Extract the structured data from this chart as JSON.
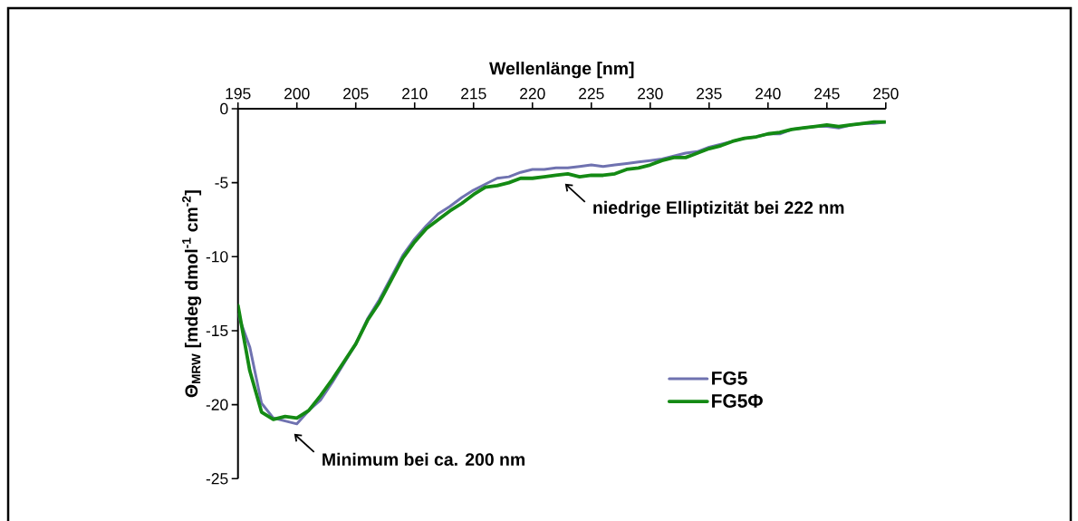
{
  "chart_data": {
    "type": "line",
    "xlabel": "Wellenlänge [nm]",
    "ylabel": "Θ$_{MRW}$ [mdeg dmol$^{-1}$ cm$^{-2}$]",
    "x": [
      195,
      196,
      197,
      198,
      199,
      200,
      201,
      202,
      203,
      204,
      205,
      206,
      207,
      208,
      209,
      210,
      211,
      212,
      213,
      214,
      215,
      216,
      217,
      218,
      219,
      220,
      221,
      222,
      223,
      224,
      225,
      226,
      227,
      228,
      229,
      230,
      231,
      232,
      233,
      234,
      235,
      236,
      237,
      238,
      239,
      240,
      241,
      242,
      243,
      244,
      245,
      246,
      247,
      248,
      249,
      250
    ],
    "series": [
      {
        "name": "FG5",
        "color": "#6f72b0",
        "values": [
          -13.9,
          -16.1,
          -19.9,
          -20.9,
          -21.1,
          -21.3,
          -20.4,
          -19.7,
          -18.5,
          -17.2,
          -15.9,
          -14.2,
          -12.9,
          -11.4,
          -9.9,
          -8.8,
          -7.9,
          -7.1,
          -6.6,
          -6.0,
          -5.5,
          -5.1,
          -4.7,
          -4.6,
          -4.3,
          -4.1,
          -4.1,
          -4.0,
          -4.0,
          -3.9,
          -3.8,
          -3.9,
          -3.8,
          -3.7,
          -3.6,
          -3.5,
          -3.4,
          -3.2,
          -3.0,
          -2.9,
          -2.6,
          -2.4,
          -2.2,
          -2.0,
          -1.9,
          -1.7,
          -1.7,
          -1.4,
          -1.3,
          -1.2,
          -1.2,
          -1.3,
          -1.1,
          -1.0,
          -1.0,
          -0.9
        ]
      },
      {
        "name": "FG5Φ",
        "color": "#148a14",
        "values": [
          -13.3,
          -17.7,
          -20.5,
          -21.0,
          -20.8,
          -20.9,
          -20.4,
          -19.4,
          -18.3,
          -17.1,
          -15.9,
          -14.3,
          -13.1,
          -11.6,
          -10.1,
          -9.0,
          -8.1,
          -7.5,
          -6.9,
          -6.4,
          -5.8,
          -5.3,
          -5.2,
          -5.0,
          -4.7,
          -4.7,
          -4.6,
          -4.5,
          -4.4,
          -4.6,
          -4.5,
          -4.5,
          -4.4,
          -4.1,
          -4.0,
          -3.8,
          -3.5,
          -3.3,
          -3.3,
          -3.0,
          -2.7,
          -2.5,
          -2.2,
          -2.0,
          -1.9,
          -1.7,
          -1.6,
          -1.4,
          -1.3,
          -1.2,
          -1.1,
          -1.2,
          -1.1,
          -1.0,
          -0.9,
          -0.9
        ]
      }
    ],
    "xlim": [
      195,
      250
    ],
    "xticks": [
      195,
      200,
      205,
      210,
      215,
      220,
      225,
      230,
      235,
      240,
      245,
      250
    ],
    "ylim": [
      -25,
      0
    ],
    "yticks": [
      -25,
      -20,
      -15,
      -10,
      -5,
      0
    ],
    "legend": "bottom right",
    "marker": "none",
    "line_style": "solid",
    "annotations": [
      {
        "text": "Minimum bei ca. 200 nm",
        "x": 200,
        "y": -21.3
      },
      {
        "text": "niedrige Elliptizität bei 222 nm",
        "x": 223,
        "y": -4.4
      }
    ]
  }
}
